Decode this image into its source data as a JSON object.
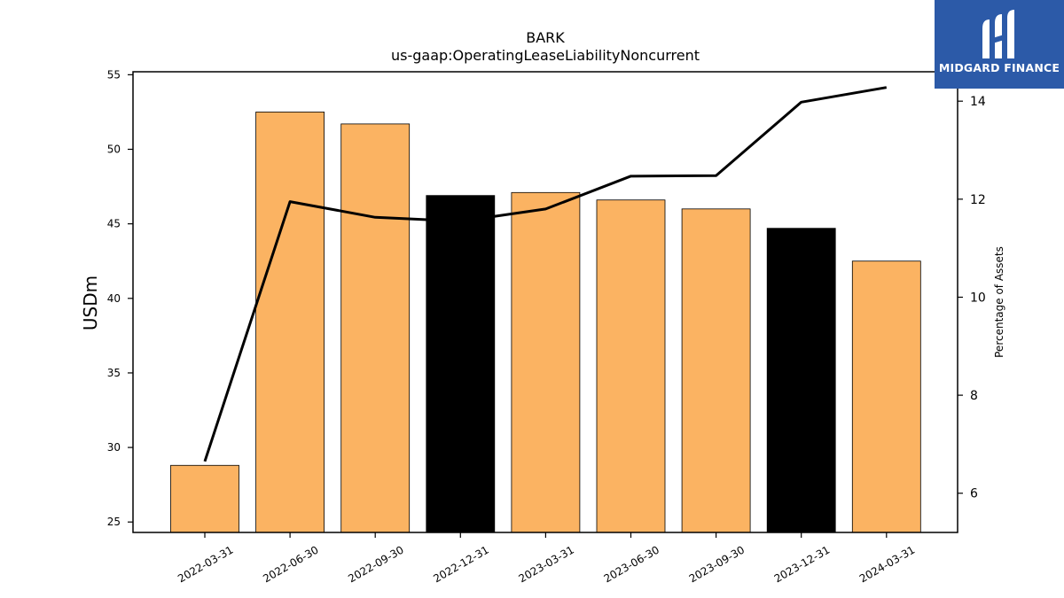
{
  "chart_data": {
    "type": "bar",
    "title": "BARK",
    "subtitle": "us-gaap:OperatingLeaseLiabilityNoncurrent",
    "ylabel": "USDm",
    "y2label": "Percentage of Assets",
    "categories": [
      "2022-03-31",
      "2022-06-30",
      "2022-09-30",
      "2022-12-31",
      "2023-03-31",
      "2023-06-30",
      "2023-09-30",
      "2023-12-31",
      "2024-03-31"
    ],
    "values": [
      28.8,
      52.5,
      51.7,
      46.9,
      47.1,
      46.6,
      46.0,
      44.7,
      42.5
    ],
    "bar_colors": [
      "#fbb362",
      "#fbb362",
      "#fbb362",
      "#000000",
      "#fbb362",
      "#fbb362",
      "#fbb362",
      "#000000",
      "#fbb362"
    ],
    "line_series": {
      "name": "",
      "values": [
        6.65,
        11.95,
        11.63,
        11.55,
        11.8,
        12.47,
        12.48,
        13.98,
        14.28
      ],
      "color": "#000000"
    },
    "ylim": [
      24.3,
      55.2
    ],
    "y2lim": [
      5.2,
      14.6
    ],
    "yticks": [
      25,
      30,
      35,
      40,
      45,
      50,
      55
    ],
    "y2ticks": [
      6,
      8,
      10,
      12,
      14
    ],
    "grid": false
  },
  "logo": {
    "text": "MIDGARD FINANCE",
    "bg": "#2c5aa8"
  }
}
